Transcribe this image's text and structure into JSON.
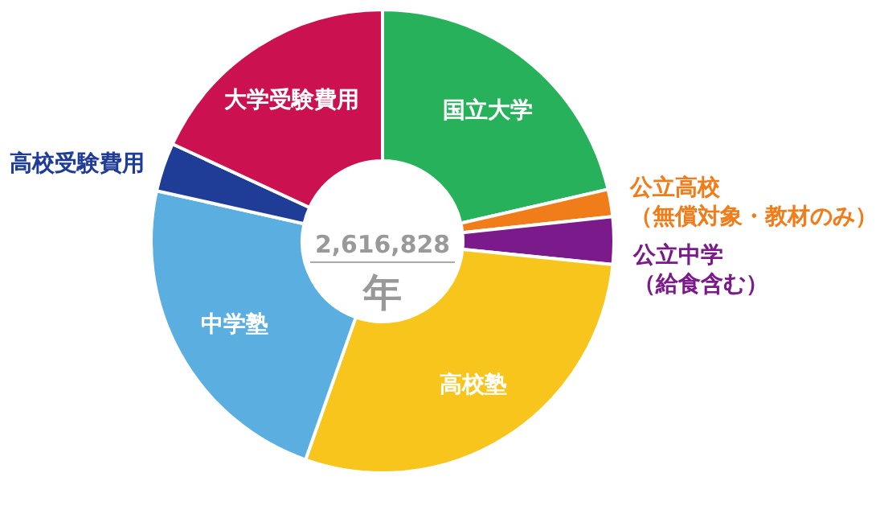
{
  "chart_data": {
    "type": "donut",
    "categories": [
      "国立大学",
      "公立高校（無償対象・教材のみ）",
      "公立中学（給食含む）",
      "高校塾",
      "中学塾",
      "高校受験費用",
      "大学受験費用"
    ],
    "values": [
      21.4,
      1.9,
      3.3,
      28.8,
      23.1,
      3.4,
      18.1
    ],
    "colors": [
      "#27b15b",
      "#f07c1a",
      "#7b1a8a",
      "#f7c51c",
      "#5aaee0",
      "#1f3c96",
      "#cc1150"
    ],
    "annotations": [
      "2,616,828",
      "年"
    ]
  }
}
